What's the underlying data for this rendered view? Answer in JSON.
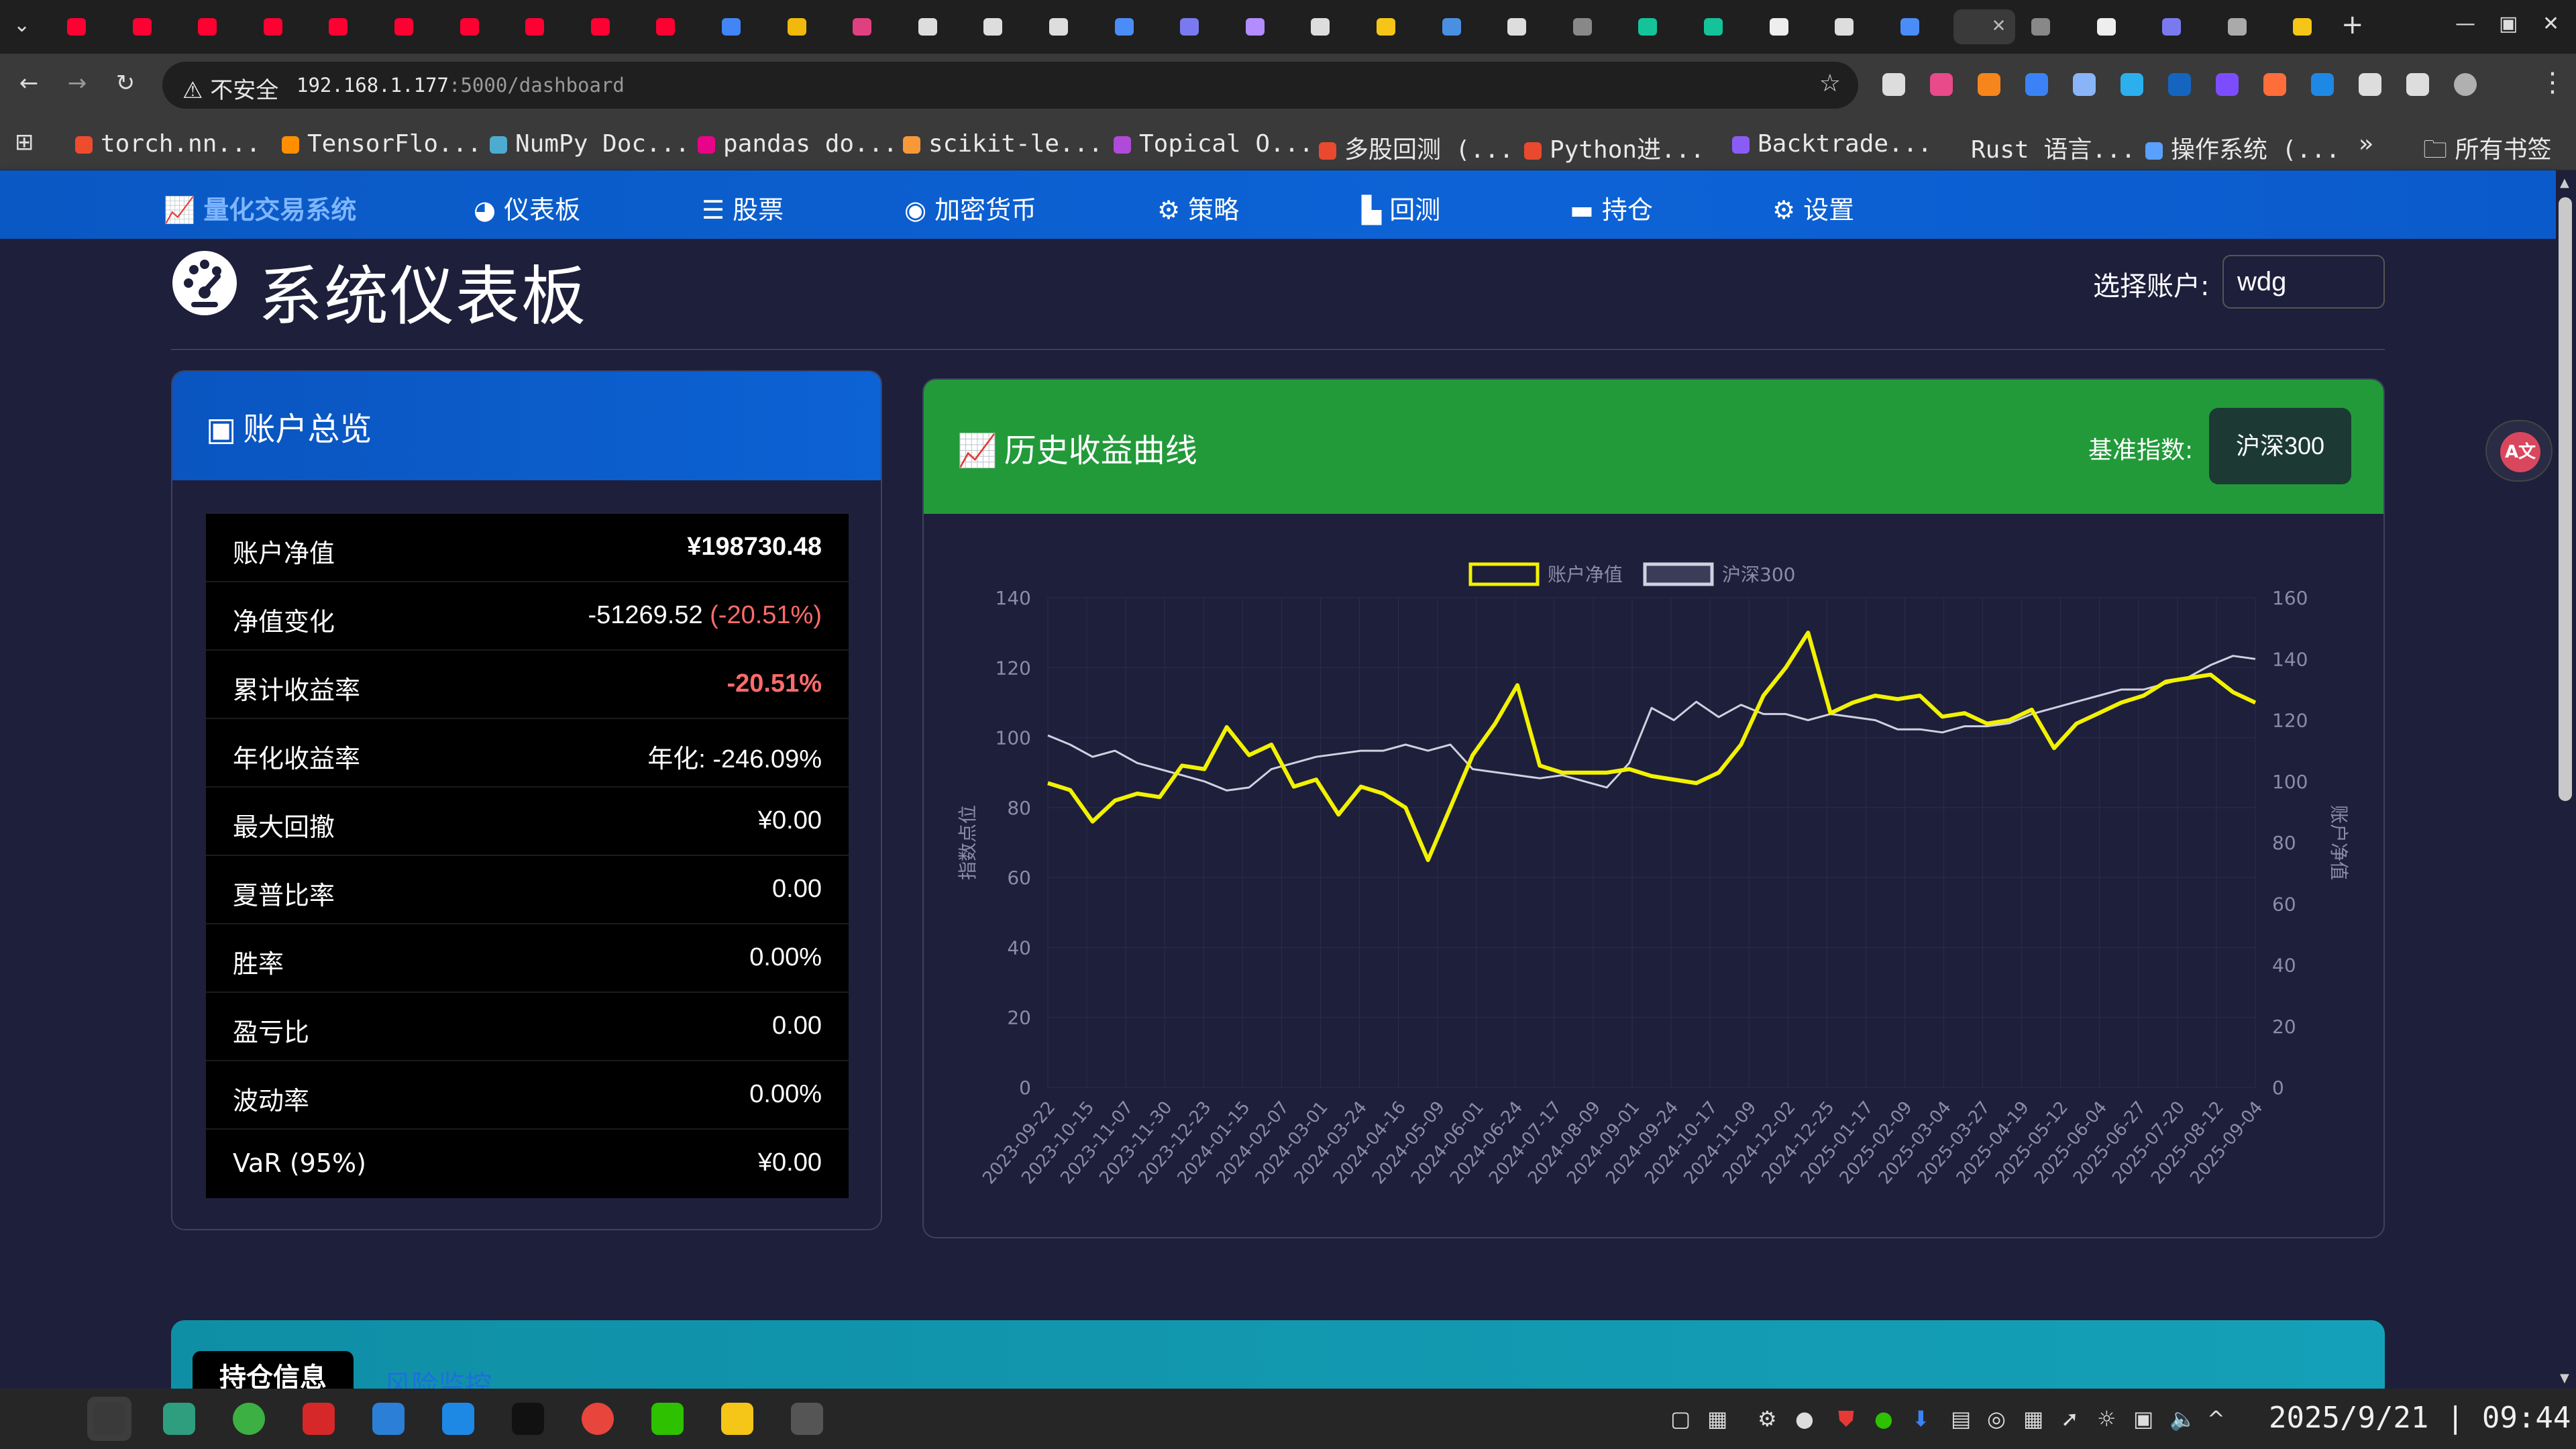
{
  "browser": {
    "tabs": [
      {
        "icon": "youtube-icon",
        "color": "#ff0033"
      },
      {
        "icon": "youtube-icon",
        "color": "#ff0033"
      },
      {
        "icon": "youtube-icon",
        "color": "#ff0033"
      },
      {
        "icon": "youtube-icon",
        "color": "#ff0033"
      },
      {
        "icon": "youtube-icon",
        "color": "#ff0033"
      },
      {
        "icon": "youtube-icon",
        "color": "#ff0033"
      },
      {
        "icon": "youtube-icon",
        "color": "#ff0033"
      },
      {
        "icon": "youtube-icon",
        "color": "#ff0033"
      },
      {
        "icon": "youtube-icon",
        "color": "#ff0033"
      },
      {
        "icon": "youtube-icon",
        "color": "#ff0033"
      },
      {
        "icon": "google-icon",
        "color": "#4285f4"
      },
      {
        "icon": "binance-icon",
        "color": "#f0b90b"
      },
      {
        "icon": "link-icon",
        "color": "#e04080"
      },
      {
        "icon": "openai-icon",
        "color": "#dddddd"
      },
      {
        "icon": "perplexity-icon",
        "color": "#dddddd"
      },
      {
        "icon": "tab-icon",
        "color": "#dddddd"
      },
      {
        "icon": "gemini-icon",
        "color": "#4a8df8"
      },
      {
        "icon": "vscode-icon",
        "color": "#7a7af0"
      },
      {
        "icon": "extension-icon",
        "color": "#b38cff"
      },
      {
        "icon": "gear-icon",
        "color": "#dddddd"
      },
      {
        "icon": "hamster-icon",
        "color": "#f5c518"
      },
      {
        "icon": "pdf-icon",
        "color": "#4a90e2"
      },
      {
        "icon": "terminal-icon",
        "color": "#dddddd"
      },
      {
        "icon": "globe-icon",
        "color": "#888888"
      },
      {
        "icon": "grammarly-icon",
        "color": "#15c39a"
      },
      {
        "icon": "grammarly-icon",
        "color": "#15c39a"
      },
      {
        "icon": "github-icon",
        "color": "#eeeeee"
      },
      {
        "icon": "openai-icon",
        "color": "#dddddd"
      },
      {
        "icon": "quant-icon",
        "color": "#4a8df8"
      },
      {
        "icon": "dot-icon",
        "color": "#aaaaaa",
        "active": true
      },
      {
        "icon": "globe-icon",
        "color": "#888888"
      },
      {
        "icon": "github-icon",
        "color": "#eeeeee"
      },
      {
        "icon": "vscode-icon",
        "color": "#7a7af0"
      },
      {
        "icon": "doc-icon",
        "color": "#aaaaaa"
      },
      {
        "icon": "hamster-icon",
        "color": "#f5c518"
      }
    ],
    "new_tab": "+",
    "address": {
      "security_label": "不安全",
      "host": "192.168.1.177",
      "path": ":5000/dashboard"
    },
    "bookmarks": [
      {
        "label": "torch.nn...",
        "color": "#ee4c2c"
      },
      {
        "label": "TensorFlo...",
        "color": "#ff8f00"
      },
      {
        "label": "NumPy Doc...",
        "color": "#4dabcf"
      },
      {
        "label": "pandas do...",
        "color": "#e70488"
      },
      {
        "label": "scikit-le...",
        "color": "#f89939"
      },
      {
        "label": "Topical O...",
        "color": "#b04ad8"
      },
      {
        "label": "多股回测 (...",
        "color": "#e94a2f"
      },
      {
        "label": "Python进...",
        "color": "#e94a2f"
      },
      {
        "label": "Backtrade...",
        "color": "#8a5cf6"
      },
      {
        "label": "Rust 语言...",
        "color": "#3a3a3a"
      },
      {
        "label": "操作系统 (...",
        "color": "#5aa0ff"
      }
    ],
    "bookmarks_more": "»",
    "all_bookmarks": "所有书签"
  },
  "nav": {
    "brand": "量化交易系统",
    "items": [
      {
        "label": "仪表板",
        "icon": "gauge-icon"
      },
      {
        "label": "股票",
        "icon": "list-icon"
      },
      {
        "label": "加密货币",
        "icon": "coins-icon"
      },
      {
        "label": "策略",
        "icon": "cogs-icon"
      },
      {
        "label": "回测",
        "icon": "bar-chart-icon"
      },
      {
        "label": "持仓",
        "icon": "wallet-icon"
      },
      {
        "label": "设置",
        "icon": "gear-icon"
      }
    ]
  },
  "header": {
    "title": "系统仪表板",
    "account_label": "选择账户:",
    "account_value": "wdg"
  },
  "account_card": {
    "title": "账户总览",
    "metrics": [
      {
        "label": "账户净值",
        "value": "¥198730.48",
        "suffix": "",
        "style": "bold"
      },
      {
        "label": "净值变化",
        "value": "-51269.52",
        "suffix": " (-20.51%)",
        "style": "normal"
      },
      {
        "label": "累计收益率",
        "value": "-20.51%",
        "suffix": "",
        "style": "bold-neg"
      },
      {
        "label": "年化收益率",
        "value": "年化: -246.09%",
        "suffix": "",
        "style": "normal"
      },
      {
        "label": "最大回撤",
        "value": "¥0.00",
        "suffix": "",
        "style": "normal"
      },
      {
        "label": "夏普比率",
        "value": "0.00",
        "suffix": "",
        "style": "normal"
      },
      {
        "label": "胜率",
        "value": "0.00%",
        "suffix": "",
        "style": "normal"
      },
      {
        "label": "盈亏比",
        "value": "0.00",
        "suffix": "",
        "style": "normal"
      },
      {
        "label": "波动率",
        "value": "0.00%",
        "suffix": "",
        "style": "normal"
      },
      {
        "label": "VaR (95%)",
        "value": "¥0.00",
        "suffix": "",
        "style": "normal"
      }
    ]
  },
  "chart_card": {
    "title": "历史收益曲线",
    "benchmark_label": "基准指数:",
    "benchmark_value": "沪深300"
  },
  "chart_data": {
    "type": "line",
    "title": "",
    "legend": [
      "账户净值",
      "沪深300"
    ],
    "legend_position": "top-center",
    "ylabel_left": "指数点位",
    "ylabel_right": "账户净值",
    "ylim_left": [
      0,
      140
    ],
    "ylim_right": [
      0,
      160
    ],
    "yticks_left": [
      0,
      20,
      40,
      60,
      80,
      100,
      120,
      140
    ],
    "yticks_right": [
      0,
      20,
      40,
      60,
      80,
      100,
      120,
      140,
      160
    ],
    "x_labels": [
      "2023-09-22",
      "2023-10-15",
      "2023-11-07",
      "2023-11-30",
      "2023-12-23",
      "2024-01-15",
      "2024-02-07",
      "2024-03-01",
      "2024-03-24",
      "2024-04-16",
      "2024-05-09",
      "2024-06-01",
      "2024-06-24",
      "2024-07-17",
      "2024-08-09",
      "2024-09-01",
      "2024-09-24",
      "2024-10-17",
      "2024-11-09",
      "2024-12-02",
      "2024-12-25",
      "2025-01-17",
      "2025-02-09",
      "2025-03-04",
      "2025-03-27",
      "2025-04-19",
      "2025-05-12",
      "2025-06-04",
      "2025-06-27",
      "2025-07-20",
      "2025-08-12",
      "2025-09-04"
    ],
    "series": [
      {
        "name": "账户净值",
        "axis": "left",
        "color": "#f2f200",
        "values": [
          87,
          85,
          76,
          82,
          84,
          83,
          92,
          91,
          103,
          95,
          98,
          86,
          88,
          78,
          86,
          84,
          80,
          65,
          80,
          95,
          104,
          115,
          92,
          90,
          90,
          90,
          91,
          89,
          88,
          87,
          90,
          98,
          112,
          120,
          130,
          107,
          110,
          112,
          111,
          112,
          106,
          107,
          104,
          105,
          108,
          97,
          104,
          107,
          110,
          112,
          116,
          117,
          118,
          113,
          110
        ]
      },
      {
        "name": "沪深300",
        "axis": "right",
        "color": "#d0d0e0",
        "values": [
          115,
          112,
          108,
          110,
          106,
          104,
          102,
          100,
          97,
          98,
          104,
          106,
          108,
          109,
          110,
          110,
          112,
          110,
          112,
          104,
          103,
          102,
          101,
          102,
          100,
          98,
          106,
          124,
          120,
          126,
          121,
          125,
          122,
          122,
          120,
          122,
          121,
          120,
          117,
          117,
          116,
          118,
          118,
          119,
          122,
          124,
          126,
          128,
          130,
          130,
          132,
          134,
          138,
          141,
          140
        ]
      }
    ]
  },
  "lower_card": {
    "tab_positions": "持仓信息",
    "tab_risk": "风险监控"
  },
  "taskbar": {
    "apps": [
      {
        "icon": "launcher-icon",
        "color": "#262626"
      },
      {
        "icon": "terminal-icon",
        "color": "#3a3a3a",
        "active": true
      },
      {
        "icon": "file-manager-icon",
        "color": "#2e9e7e"
      },
      {
        "icon": "download-icon",
        "color": "#3cb043"
      },
      {
        "icon": "stock-app-icon",
        "color": "#d62828"
      },
      {
        "icon": "browser-icon",
        "color": "#2b7fd6"
      },
      {
        "icon": "editor-icon",
        "color": "#1e88e5"
      },
      {
        "icon": "qq-icon",
        "color": "#111111"
      },
      {
        "icon": "chrome-icon",
        "color": "#e8453c"
      },
      {
        "icon": "wechat-icon",
        "color": "#2dc100"
      },
      {
        "icon": "paw-icon",
        "color": "#f5c518"
      },
      {
        "icon": "calculator-icon",
        "color": "#555555"
      }
    ],
    "clock": "2025/9/21 | 09:44"
  }
}
